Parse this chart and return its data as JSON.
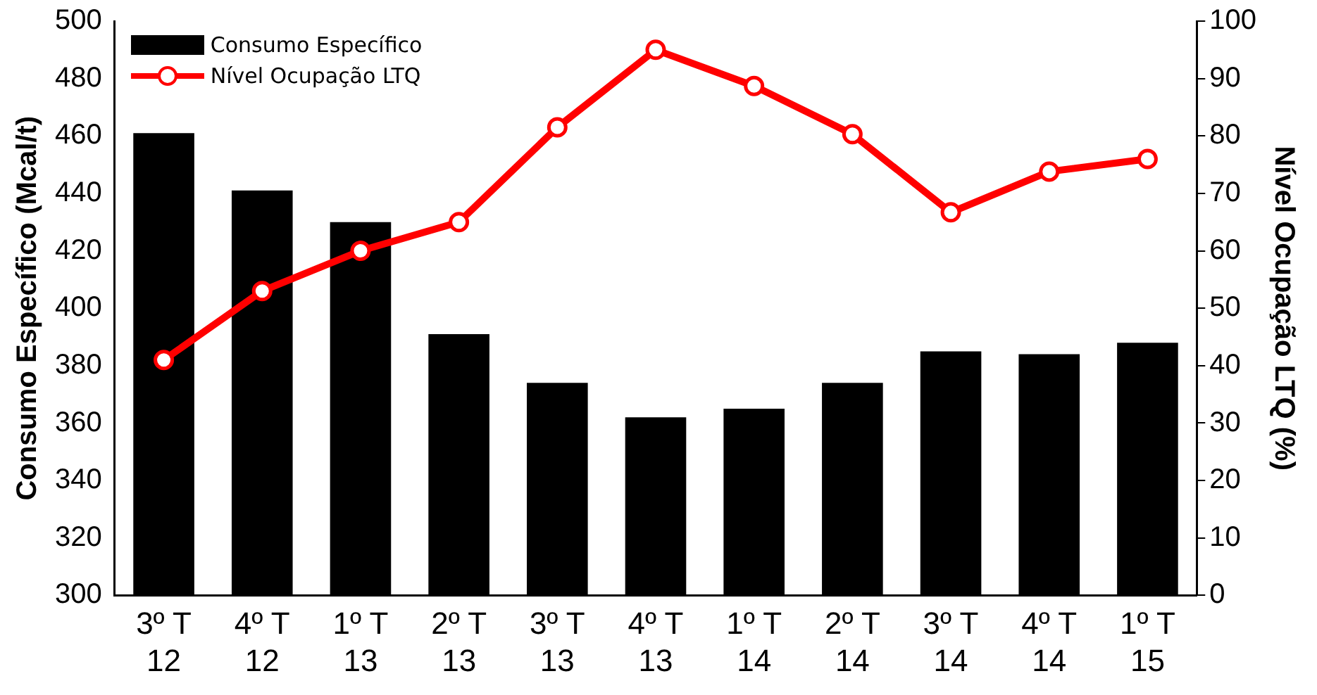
{
  "chart_data": {
    "type": "bar",
    "categories": [
      "3º T 12",
      "4º T 12",
      "1º T 13",
      "2º T 13",
      "3º T 13",
      "4º T 13",
      "1º T 14",
      "2º T 14",
      "3º T 14",
      "4º T 14",
      "1º T 15"
    ],
    "series": [
      {
        "name": "Consumo Específico",
        "color": "#000000",
        "values": [
          461,
          441,
          430,
          391,
          374,
          362,
          365,
          374,
          385,
          384,
          388
        ]
      },
      {
        "name": "Nível Ocupação LTQ",
        "type": "line",
        "axis": "y2",
        "color": "#ff0000",
        "marker": "circle",
        "values": [
          41,
          53,
          60,
          65,
          81.5,
          95,
          88.7,
          80.3,
          66.7,
          73.8,
          76
        ]
      }
    ],
    "ylabel": "Consumo Específico (Mcal/t)",
    "y2label": "Nível Ocupação LTQ (%)",
    "ylim": [
      300,
      500
    ],
    "yticks": [
      300,
      320,
      340,
      360,
      380,
      400,
      420,
      440,
      460,
      480,
      500
    ],
    "y2lim": [
      0,
      100
    ],
    "y2ticks": [
      0,
      10,
      20,
      30,
      40,
      50,
      60,
      70,
      80,
      90,
      100
    ],
    "grid": false,
    "legend": "top left"
  }
}
